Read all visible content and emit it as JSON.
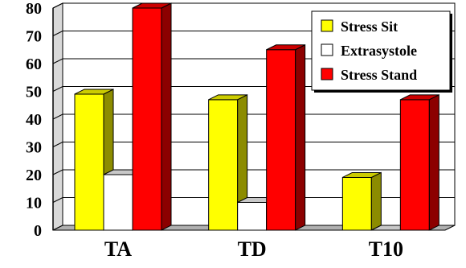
{
  "chart_data": {
    "type": "bar",
    "title": "",
    "xlabel": "",
    "ylabel": "",
    "ylim": [
      0,
      80
    ],
    "yticks": [
      0,
      10,
      20,
      30,
      40,
      50,
      60,
      70,
      80
    ],
    "grid": true,
    "legend_position": "top-right",
    "categories": [
      "TA",
      "TD",
      "T10"
    ],
    "series": [
      {
        "name": "Stress Sit",
        "color": "#ffff00",
        "values": [
          49,
          47,
          19
        ]
      },
      {
        "name": "Extrasystole",
        "color": "#ffffff",
        "values": [
          20,
          10,
          0
        ]
      },
      {
        "name": "Stress Stand",
        "color": "#ff0000",
        "values": [
          80,
          65,
          47
        ]
      }
    ]
  }
}
